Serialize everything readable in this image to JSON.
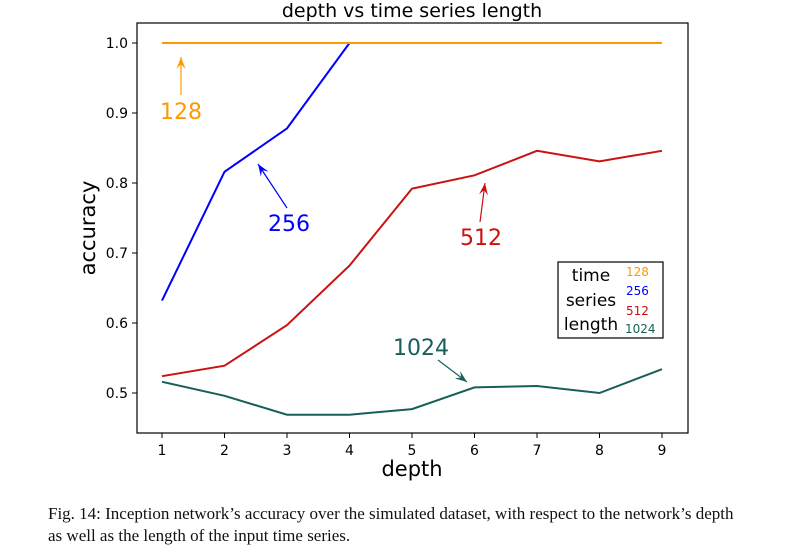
{
  "chart_data": {
    "type": "line",
    "title": "depth vs time series length",
    "xlabel": "depth",
    "ylabel": "accuracy",
    "x": [
      1,
      2,
      3,
      4,
      5,
      6,
      7,
      8,
      9
    ],
    "xlim": [
      0.6,
      9.4
    ],
    "ylim": [
      0.44,
      1.025
    ],
    "xticks": [
      1,
      2,
      3,
      4,
      5,
      6,
      7,
      8,
      9
    ],
    "yticks": [
      0.5,
      0.6,
      0.7,
      0.8,
      0.9,
      1.0
    ],
    "ytick_labels": [
      "0.5",
      "0.6",
      "0.7",
      "0.8",
      "0.9",
      "1.0"
    ],
    "grid": false,
    "series": [
      {
        "name": "128",
        "color": "#ff9900",
        "values": [
          1.0,
          1.0,
          1.0,
          1.0,
          1.0,
          1.0,
          1.0,
          1.0,
          1.0
        ]
      },
      {
        "name": "256",
        "color": "#0000ff",
        "values": [
          0.632,
          0.816,
          0.878,
          1.0,
          1.0,
          1.0,
          1.0,
          1.0,
          1.0
        ]
      },
      {
        "name": "512",
        "color": "#cc1111",
        "values": [
          0.524,
          0.539,
          0.597,
          0.682,
          0.792,
          0.811,
          0.846,
          0.831,
          0.846
        ]
      },
      {
        "name": "1024",
        "color": "#17605a",
        "values": [
          0.516,
          0.496,
          0.469,
          0.469,
          0.477,
          0.508,
          0.51,
          0.5,
          0.534
        ]
      }
    ],
    "annotations": [
      {
        "text": "128",
        "color": "#ff9900",
        "points_to": [
          1.3,
          1.0
        ]
      },
      {
        "text": "256",
        "color": "#0000ff",
        "points_to": [
          2.5,
          0.83
        ]
      },
      {
        "text": "512",
        "color": "#cc1111",
        "points_to": [
          6.15,
          0.81
        ]
      },
      {
        "text": "1024",
        "color": "#17605a",
        "points_to": [
          5.9,
          0.51
        ]
      }
    ],
    "legend": {
      "title_lines": [
        "time",
        "series",
        "length"
      ],
      "entries": [
        "128",
        "256",
        "512",
        "1024"
      ],
      "placement": "right"
    }
  },
  "caption": "Fig. 14: Inception network’s accuracy over the simulated dataset, with respect to the network’s depth as well as the length of the input time series."
}
